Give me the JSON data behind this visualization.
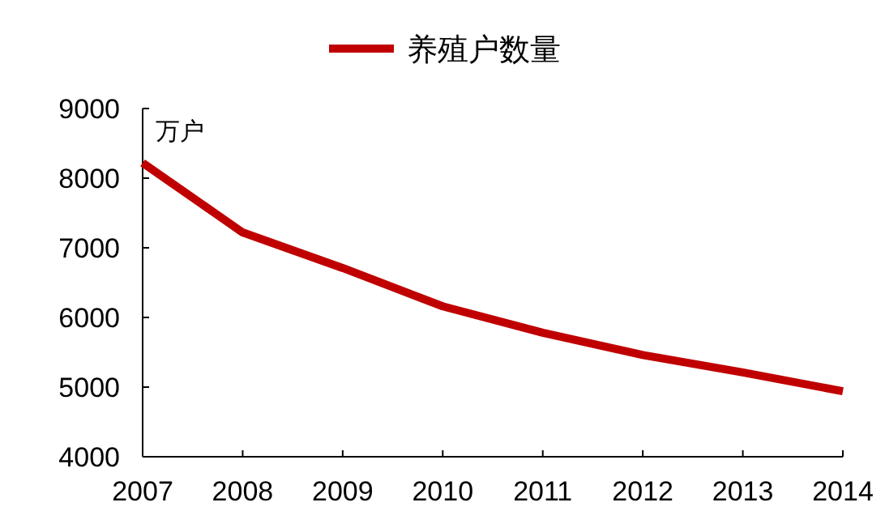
{
  "chart_data": {
    "type": "line",
    "ylabel": "万户",
    "categories": [
      "2007",
      "2008",
      "2009",
      "2010",
      "2011",
      "2012",
      "2013",
      "2014"
    ],
    "series": [
      {
        "name": "养殖户数量",
        "color": "#c00000",
        "values": [
          8220,
          7220,
          6710,
          6160,
          5780,
          5460,
          5210,
          4940
        ]
      }
    ],
    "ylim": [
      4000,
      9000
    ],
    "yticks": [
      4000,
      5000,
      6000,
      7000,
      8000,
      9000
    ],
    "legend": "top",
    "grid": false,
    "marker": "none",
    "line_style": "solid"
  }
}
